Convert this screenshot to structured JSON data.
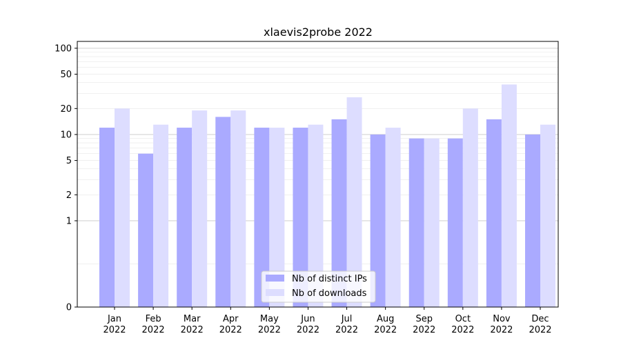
{
  "chart_data": {
    "type": "bar",
    "title": "xlaevis2probe 2022",
    "xlabel": "",
    "ylabel": "",
    "yscale": "symlog",
    "ylim": [
      0,
      120
    ],
    "y_ticks": [
      0,
      1,
      2,
      5,
      10,
      20,
      50,
      100
    ],
    "categories": [
      {
        "month": "Jan",
        "year": "2022"
      },
      {
        "month": "Feb",
        "year": "2022"
      },
      {
        "month": "Mar",
        "year": "2022"
      },
      {
        "month": "Apr",
        "year": "2022"
      },
      {
        "month": "May",
        "year": "2022"
      },
      {
        "month": "Jun",
        "year": "2022"
      },
      {
        "month": "Jul",
        "year": "2022"
      },
      {
        "month": "Aug",
        "year": "2022"
      },
      {
        "month": "Sep",
        "year": "2022"
      },
      {
        "month": "Oct",
        "year": "2022"
      },
      {
        "month": "Nov",
        "year": "2022"
      },
      {
        "month": "Dec",
        "year": "2022"
      }
    ],
    "series": [
      {
        "name": "Nb of distinct IPs",
        "color": "#aaaaff",
        "values": [
          12,
          6,
          12,
          16,
          12,
          12,
          15,
          10,
          9,
          9,
          15,
          10
        ]
      },
      {
        "name": "Nb of downloads",
        "color": "#ddddff",
        "values": [
          20,
          13,
          19,
          19,
          12,
          13,
          27,
          12,
          9,
          20,
          38,
          13
        ]
      }
    ],
    "legend": "bottom-center",
    "grid": true
  }
}
